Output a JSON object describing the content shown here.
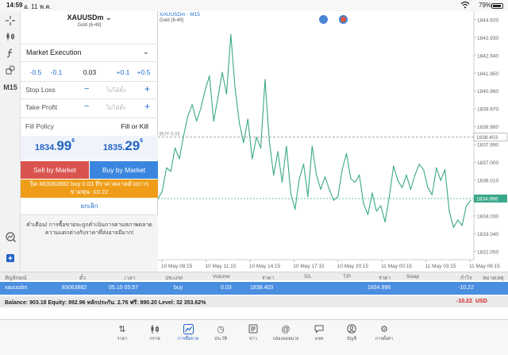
{
  "status_bar": {
    "time": "14:59",
    "date": "อ. 11 พ.ค.",
    "battery": "79%"
  },
  "left_toolbar": {
    "timeframe": "M15"
  },
  "order": {
    "symbol": "XAUUSDm",
    "description": "Gold (6-49)",
    "execution": "Market Execution",
    "volume_steps": [
      "-0.5",
      "-0.1",
      "0.03",
      "+0.1",
      "+0.5"
    ],
    "stop_loss_label": "Stop Loss",
    "take_profit_label": "Take Profit",
    "not_set_placeholder": "ไม่ได้ตั้ง",
    "fill_policy_label": "Fill Policy",
    "fill_policy_value": "Fill or Kill",
    "sell_price": {
      "main": "1834.",
      "big": "99",
      "sup": "6"
    },
    "buy_price": {
      "main": "1835.",
      "big": "29",
      "sup": "6"
    },
    "sell_button": "Sell by Market",
    "buy_button": "Buy by Market",
    "close_line1": "ปิด #83063882 buy 0.03 ที่ราคาตลาดด้วยการ",
    "close_line2": "ขาดทุน -10.22",
    "cancel": "ยกเลิก",
    "warning": "คำเตือน! การซื้อขายจะถูกดำเนินการตามสภาพตลาด ความแตกต่างกับราคาที่ส่งอาจมีมาก!"
  },
  "chart_data": {
    "type": "line",
    "symbol_label": "XAUUSDm · M15",
    "symbol_sub": "Gold (6-49)",
    "x_labels": [
      "10 May 08:15",
      "10 May 11:15",
      "10 May 14:15",
      "10 May 17:15",
      "10 May 20:15",
      "11 May 00:15",
      "11 May 03:15",
      "11 May 06:15"
    ],
    "y_ticks": [
      "1844.920",
      "1843.930",
      "1842.940",
      "1841.950",
      "1840.960",
      "1839.970",
      "1838.980",
      "1838.403",
      "1837.990",
      "1837.000",
      "1836.010",
      "1835.020",
      "1834.996",
      "1834.030",
      "1833.040",
      "1832.050"
    ],
    "ylim": [
      1831.6,
      1845.4
    ],
    "buy_level": 1838.403,
    "buy_label": "BUY 0.03",
    "bid_level": 1834.996,
    "values": [
      1835.0,
      1835.4,
      1836.7,
      1836.5,
      1837.8,
      1837.2,
      1838.5,
      1839.6,
      1840.2,
      1839.3,
      1840.0,
      1841.0,
      1841.8,
      1839.3,
      1840.6,
      1842.0,
      1840.8,
      1844.1,
      1841.1,
      1839.2,
      1838.1,
      1839.4,
      1837.2,
      1838.4,
      1837.8,
      1841.6,
      1838.2,
      1836.3,
      1837.6,
      1835.9,
      1837.9,
      1835.3,
      1834.4,
      1836.1,
      1836.9,
      1835.1,
      1837.9,
      1836.3,
      1835.5,
      1836.2,
      1835.5,
      1834.9,
      1835.1,
      1836.6,
      1837.5,
      1836.1,
      1835.9,
      1836.3,
      1834.7,
      1834.1,
      1835.3,
      1834.3,
      1834.6,
      1833.7,
      1835.1,
      1836.8,
      1836.0,
      1835.6,
      1836.3,
      1835.5,
      1836.3,
      1836.9,
      1836.6,
      1835.6,
      1835.2,
      1836.7,
      1836.0,
      1836.6,
      1834.3,
      1833.4,
      1833.8,
      1833.5,
      1834.6,
      1834.9
    ]
  },
  "trades": {
    "headers": [
      "สัญลักษณ์",
      "ตั๋ว",
      "เวลา",
      "ประเภท",
      "Volume",
      "ราคา",
      "S/L",
      "T/P",
      "ราคา",
      "Swap",
      "กำไร",
      "หมายเหตุ"
    ],
    "row": {
      "symbol": "xauusdm",
      "ticket": "83063882",
      "time": "05.10 05:57",
      "type": "buy",
      "volume": "0.03",
      "open_price": "1838.403",
      "price": "1834.996",
      "profit": "-10.22"
    },
    "balance_text": "Balance: 903.18 Equity: 892.96 หลักประกัน: 2.76 ฟรี: 890.20 Level: 32 353.62%",
    "balance_profit": "-10.22",
    "currency": "USD"
  },
  "tabs": [
    {
      "icon": "quotes-icon",
      "label": "ราคา"
    },
    {
      "icon": "chart-icon",
      "label": "กราฟ"
    },
    {
      "icon": "trade-icon",
      "label": "การซื้อขาย"
    },
    {
      "icon": "history-icon",
      "label": "ประวัติ"
    },
    {
      "icon": "news-icon",
      "label": "ข่าว"
    },
    {
      "icon": "mailbox-icon",
      "label": "กล่องจดหมาย"
    },
    {
      "icon": "chat-icon",
      "label": "แชท"
    },
    {
      "icon": "account-icon",
      "label": "บัญชี"
    },
    {
      "icon": "settings-icon",
      "label": "การตั้งค่า"
    }
  ],
  "colors": {
    "accent": "#2163c5",
    "sell": "#d9534f",
    "buy": "#3a86de",
    "close_bar": "#ef9d18",
    "line": "#3aa88a",
    "loss": "#d42020"
  }
}
